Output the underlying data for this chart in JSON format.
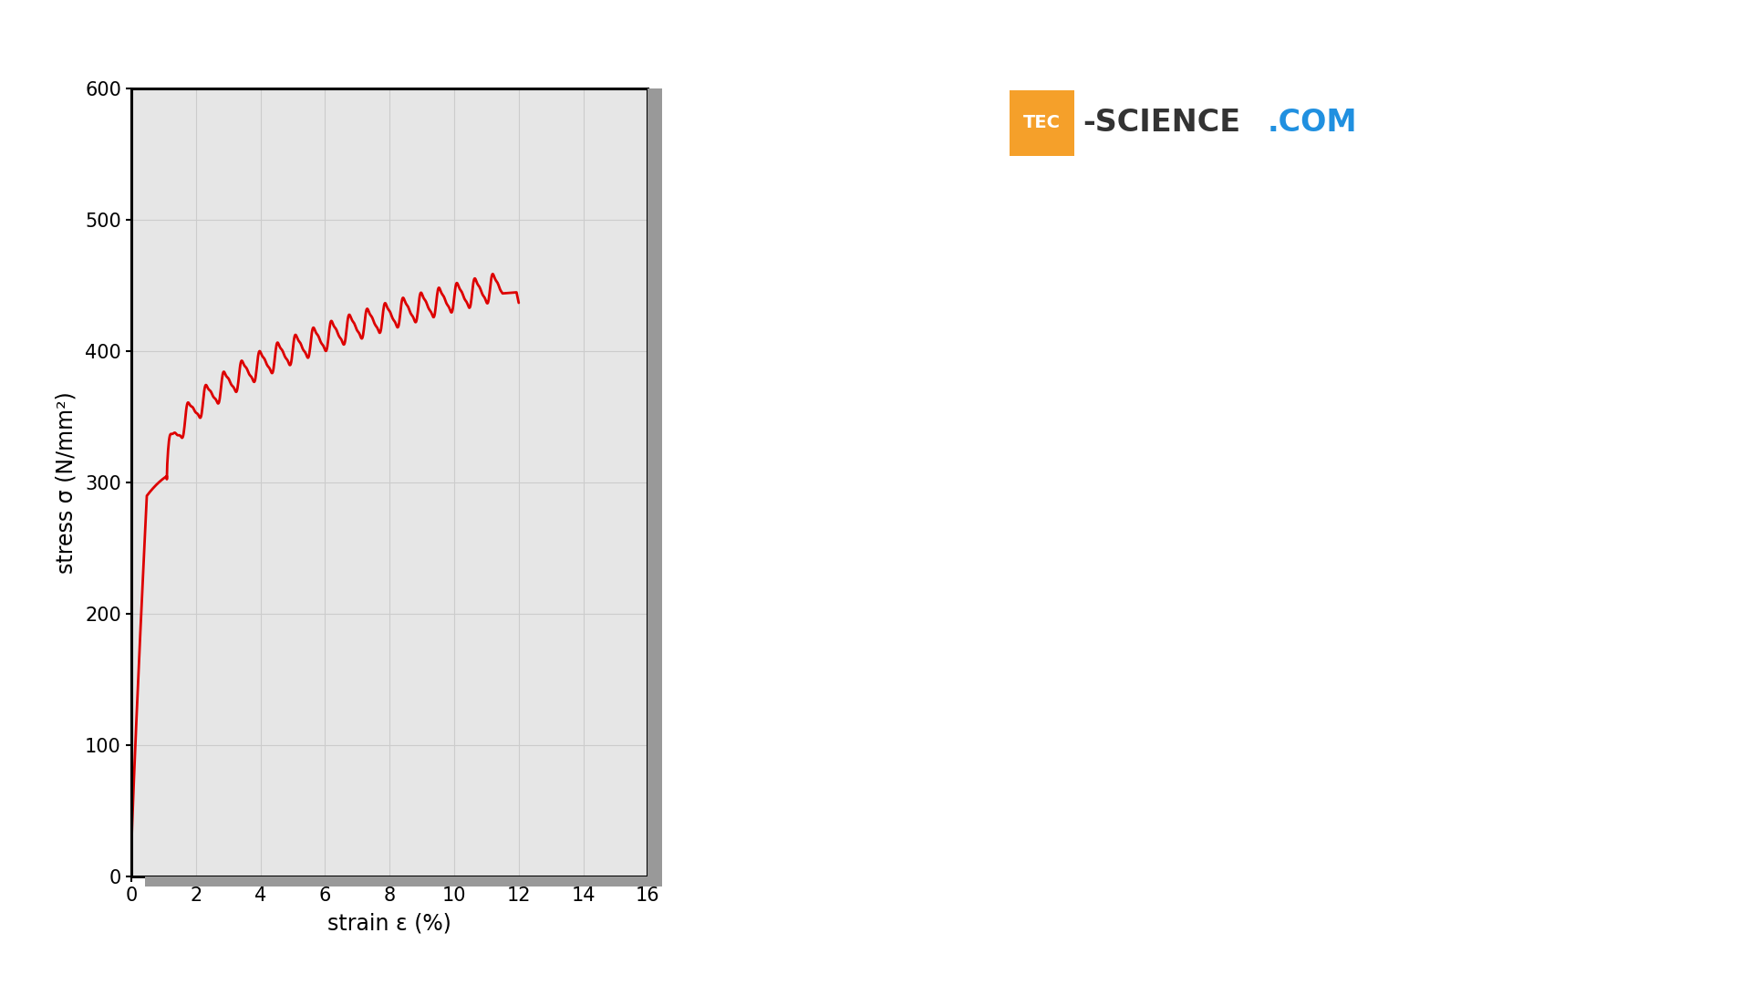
{
  "xlabel": "strain ε (%)",
  "ylabel": "stress σ (N/mm²)",
  "xlim": [
    0,
    16
  ],
  "ylim": [
    0,
    600
  ],
  "xticks": [
    0,
    2,
    4,
    6,
    8,
    10,
    12,
    14,
    16
  ],
  "yticks": [
    0,
    100,
    200,
    300,
    400,
    500,
    600
  ],
  "line_color": "#dd0000",
  "line_width": 2.0,
  "grid_color": "#cccccc",
  "facecolor": "#e6e6e6",
  "bg_color": "#ffffff",
  "logo_orange": "#f5a02a",
  "logo_blue": "#2090e0",
  "logo_dark": "#333333",
  "shadow_color": "#999999"
}
